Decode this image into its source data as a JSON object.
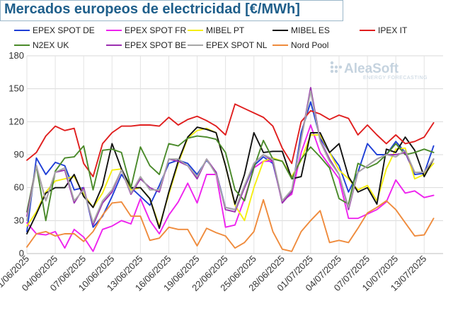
{
  "header": {
    "title": "Mercados europeos de electricidad [€/MWh]"
  },
  "watermark": {
    "brand": "AleaSoft",
    "tagline": "ENERGY FORECASTING"
  },
  "chart_data": {
    "type": "line",
    "title": "Mercados europeos de electricidad [€/MWh]",
    "xlabel": "",
    "ylabel": "",
    "ylim": [
      0,
      180
    ],
    "y_ticks": [
      0,
      30,
      60,
      90,
      120,
      150,
      180
    ],
    "grid": true,
    "legend_placement": "top",
    "x_tick_labels": [
      "01/06/2025",
      "04/06/2025",
      "07/06/2025",
      "10/06/2025",
      "13/06/2025",
      "16/06/2025",
      "19/06/2025",
      "22/06/2025",
      "25/06/2025",
      "28/06/2025",
      "01/07/2025",
      "04/07/2025",
      "07/07/2025",
      "10/07/2025",
      "13/07/2025"
    ],
    "x_tick_every": 3,
    "x": [
      "01/06/2025",
      "02/06/2025",
      "03/06/2025",
      "04/06/2025",
      "05/06/2025",
      "06/06/2025",
      "07/06/2025",
      "08/06/2025",
      "09/06/2025",
      "10/06/2025",
      "11/06/2025",
      "12/06/2025",
      "13/06/2025",
      "14/06/2025",
      "15/06/2025",
      "16/06/2025",
      "17/06/2025",
      "18/06/2025",
      "19/06/2025",
      "20/06/2025",
      "21/06/2025",
      "22/06/2025",
      "23/06/2025",
      "24/06/2025",
      "25/06/2025",
      "26/06/2025",
      "27/06/2025",
      "28/06/2025",
      "29/06/2025",
      "30/06/2025",
      "01/07/2025",
      "02/07/2025",
      "03/07/2025",
      "04/07/2025",
      "05/07/2025",
      "06/07/2025",
      "07/07/2025",
      "08/07/2025",
      "09/07/2025",
      "10/07/2025",
      "11/07/2025",
      "12/07/2025",
      "13/07/2025",
      "14/07/2025",
      "15/07/2025"
    ],
    "series": [
      {
        "name": "EPEX SPOT DE",
        "color": "#1f3fd6",
        "values": [
          20,
          87,
          72,
          83,
          80,
          58,
          60,
          24,
          34,
          52,
          72,
          60,
          52,
          44,
          62,
          82,
          85,
          82,
          72,
          85,
          74,
          42,
          40,
          60,
          80,
          88,
          82,
          48,
          56,
          110,
          138,
          105,
          92,
          80,
          56,
          74,
          100,
          90,
          90,
          102,
          92,
          72,
          73,
          98,
          null
        ]
      },
      {
        "name": "EPEX SPOT FR",
        "color": "#ee22ee",
        "values": [
          28,
          18,
          17,
          20,
          5,
          22,
          15,
          2,
          22,
          25,
          30,
          27,
          50,
          30,
          18,
          35,
          47,
          64,
          46,
          72,
          72,
          24,
          26,
          50,
          78,
          84,
          84,
          48,
          54,
          92,
          117,
          92,
          80,
          68,
          32,
          32,
          36,
          40,
          47,
          67,
          55,
          57,
          51,
          53,
          null
        ]
      },
      {
        "name": "MIBEL PT",
        "color": "#f5ee10",
        "values": [
          25,
          38,
          56,
          66,
          68,
          70,
          54,
          42,
          55,
          76,
          77,
          58,
          60,
          50,
          25,
          54,
          82,
          105,
          112,
          114,
          110,
          80,
          44,
          30,
          60,
          84,
          87,
          84,
          70,
          85,
          108,
          108,
          92,
          76,
          68,
          58,
          62,
          48,
          77,
          95,
          96,
          68,
          72,
          82,
          null
        ]
      },
      {
        "name": "MIBEL ES",
        "color": "#111111",
        "values": [
          18,
          36,
          55,
          60,
          60,
          72,
          52,
          42,
          62,
          100,
          77,
          60,
          60,
          50,
          23,
          56,
          84,
          106,
          115,
          113,
          110,
          80,
          45,
          72,
          110,
          92,
          93,
          93,
          68,
          70,
          110,
          110,
          92,
          100,
          70,
          56,
          60,
          45,
          95,
          92,
          106,
          94,
          70,
          86,
          null
        ]
      },
      {
        "name": "IPEX IT",
        "color": "#e01e1e",
        "values": [
          85,
          92,
          107,
          116,
          112,
          114,
          82,
          70,
          100,
          110,
          116,
          116,
          117,
          117,
          116,
          124,
          117,
          122,
          125,
          121,
          116,
          108,
          136,
          132,
          128,
          124,
          116,
          96,
          82,
          120,
          130,
          127,
          122,
          126,
          123,
          108,
          117,
          108,
          100,
          108,
          100,
          102,
          106,
          119,
          null
        ]
      },
      {
        "name": "N2EX UK",
        "color": "#4a8a2a",
        "values": [
          38,
          80,
          30,
          75,
          87,
          88,
          98,
          58,
          94,
          95,
          92,
          60,
          97,
          80,
          72,
          100,
          98,
          105,
          107,
          106,
          104,
          92,
          58,
          48,
          78,
          103,
          86,
          84,
          68,
          86,
          97,
          88,
          78,
          50,
          45,
          82,
          78,
          82,
          90,
          100,
          90,
          92,
          95,
          92,
          null
        ]
      },
      {
        "name": "EPEX SPOT BE",
        "color": "#9b2fb0",
        "values": [
          34,
          80,
          48,
          74,
          76,
          46,
          60,
          26,
          46,
          56,
          76,
          54,
          68,
          60,
          56,
          86,
          84,
          80,
          68,
          86,
          74,
          40,
          38,
          60,
          82,
          90,
          84,
          46,
          56,
          104,
          151,
          103,
          86,
          72,
          40,
          74,
          80,
          86,
          90,
          90,
          92,
          74,
          74,
          86,
          null
        ]
      },
      {
        "name": "EPEX SPOT NL",
        "color": "#a6a6a6",
        "values": [
          30,
          80,
          48,
          74,
          78,
          48,
          58,
          28,
          48,
          58,
          76,
          55,
          70,
          58,
          58,
          86,
          86,
          80,
          70,
          86,
          72,
          42,
          40,
          62,
          82,
          90,
          86,
          48,
          58,
          104,
          148,
          102,
          84,
          72,
          42,
          74,
          80,
          86,
          90,
          88,
          94,
          74,
          74,
          86,
          null
        ]
      },
      {
        "name": "Nord Pool",
        "color": "#ef8b3c",
        "values": [
          6,
          18,
          20,
          16,
          18,
          18,
          11,
          20,
          35,
          46,
          47,
          34,
          34,
          12,
          14,
          24,
          22,
          22,
          7,
          23,
          19,
          16,
          5,
          10,
          20,
          49,
          20,
          4,
          2,
          20,
          30,
          39,
          10,
          12,
          10,
          23,
          37,
          42,
          48,
          40,
          28,
          16,
          17,
          32,
          null
        ]
      }
    ]
  }
}
